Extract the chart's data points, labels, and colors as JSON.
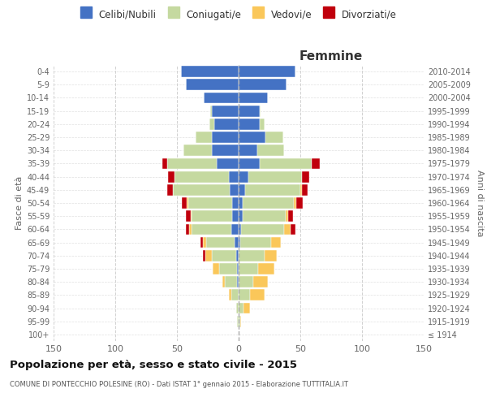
{
  "age_groups": [
    "100+",
    "95-99",
    "90-94",
    "85-89",
    "80-84",
    "75-79",
    "70-74",
    "65-69",
    "60-64",
    "55-59",
    "50-54",
    "45-49",
    "40-44",
    "35-39",
    "30-34",
    "25-29",
    "20-24",
    "15-19",
    "10-14",
    "5-9",
    "0-4"
  ],
  "birth_years": [
    "≤ 1914",
    "1915-1919",
    "1920-1924",
    "1925-1929",
    "1930-1934",
    "1935-1939",
    "1940-1944",
    "1945-1949",
    "1950-1954",
    "1955-1959",
    "1960-1964",
    "1965-1969",
    "1970-1974",
    "1975-1979",
    "1980-1984",
    "1985-1989",
    "1990-1994",
    "1995-1999",
    "2000-2004",
    "2005-2009",
    "2010-2014"
  ],
  "male": {
    "celibi": [
      0,
      0,
      0,
      0,
      1,
      1,
      2,
      3,
      6,
      5,
      5,
      7,
      8,
      18,
      22,
      22,
      20,
      22,
      28,
      43,
      47
    ],
    "coniugati": [
      0,
      1,
      2,
      6,
      10,
      15,
      20,
      23,
      32,
      33,
      36,
      46,
      44,
      40,
      23,
      13,
      4,
      1,
      0,
      0,
      0
    ],
    "vedovi": [
      0,
      0,
      0,
      2,
      2,
      5,
      5,
      3,
      2,
      1,
      1,
      0,
      0,
      0,
      0,
      0,
      0,
      0,
      0,
      0,
      0
    ],
    "divorziati": [
      0,
      0,
      0,
      0,
      0,
      0,
      2,
      2,
      3,
      4,
      4,
      5,
      5,
      4,
      0,
      0,
      0,
      0,
      0,
      0,
      0
    ]
  },
  "female": {
    "nubili": [
      0,
      0,
      0,
      0,
      0,
      0,
      0,
      1,
      2,
      3,
      3,
      5,
      8,
      17,
      15,
      22,
      17,
      17,
      24,
      39,
      46
    ],
    "coniugate": [
      0,
      1,
      4,
      9,
      12,
      16,
      21,
      25,
      35,
      35,
      42,
      45,
      43,
      42,
      22,
      14,
      4,
      1,
      0,
      0,
      0
    ],
    "vedove": [
      0,
      1,
      5,
      12,
      12,
      13,
      10,
      8,
      5,
      2,
      2,
      1,
      0,
      0,
      0,
      0,
      0,
      0,
      0,
      0,
      0
    ],
    "divorziate": [
      0,
      0,
      0,
      0,
      0,
      0,
      0,
      0,
      4,
      4,
      5,
      5,
      6,
      7,
      0,
      0,
      0,
      0,
      0,
      0,
      0
    ]
  },
  "colors": {
    "celibi": "#4472C4",
    "coniugati": "#C5D9A0",
    "vedovi": "#FAC75A",
    "divorziati": "#C0000C"
  },
  "title": "Popolazione per età, sesso e stato civile - 2015",
  "subtitle": "COMUNE DI PONTECCHIO POLESINE (RO) - Dati ISTAT 1° gennaio 2015 - Elaborazione TUTTITALIA.IT",
  "xlabel_right": "Femmine",
  "ylabel_left": "Fasce di età",
  "ylabel_right": "Anni di nascita",
  "xlim": 150,
  "legend_labels": [
    "Celibi/Nubili",
    "Coniugati/e",
    "Vedovi/e",
    "Divorziati/e"
  ],
  "background_color": "#ffffff",
  "grid_color": "#cccccc"
}
